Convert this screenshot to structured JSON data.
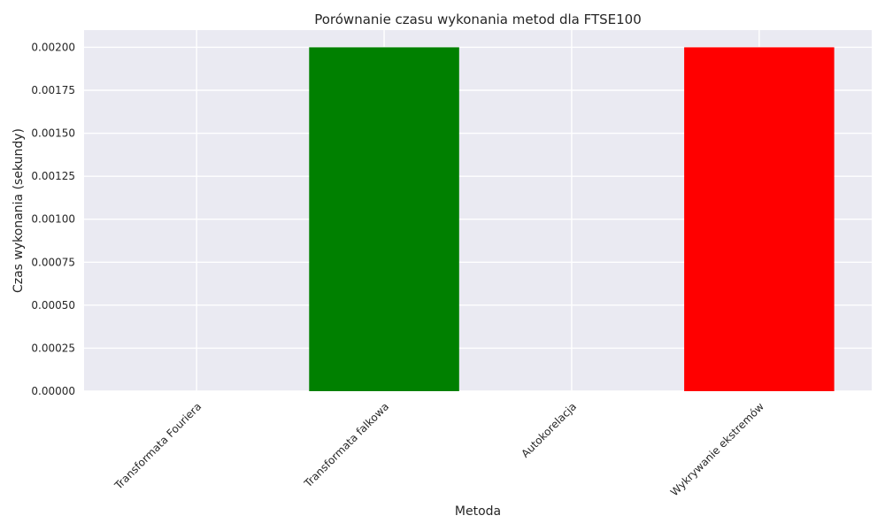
{
  "chart_data": {
    "type": "bar",
    "title": "Porównanie czasu wykonania metod dla FTSE100",
    "xlabel": "Metoda",
    "ylabel": "Czas wykonania (sekundy)",
    "categories": [
      "Transformata Fouriera",
      "Transformata falkowa",
      "Autokorelacja",
      "Wykrywanie ekstremów"
    ],
    "values": [
      0.0,
      0.002,
      0.0,
      0.002
    ],
    "colors": [
      "#1f77b4",
      "#008000",
      "#ff7f0e",
      "#ff0000"
    ],
    "ylim": [
      0,
      0.0021
    ],
    "yticks": [
      "0.00000",
      "0.00025",
      "0.00050",
      "0.00075",
      "0.00100",
      "0.00125",
      "0.00150",
      "0.00175",
      "0.00200"
    ],
    "ytick_values": [
      0,
      0.00025,
      0.0005,
      0.00075,
      0.001,
      0.00125,
      0.0015,
      0.00175,
      0.002
    ],
    "grid": true,
    "background": "#eaeaf2"
  }
}
